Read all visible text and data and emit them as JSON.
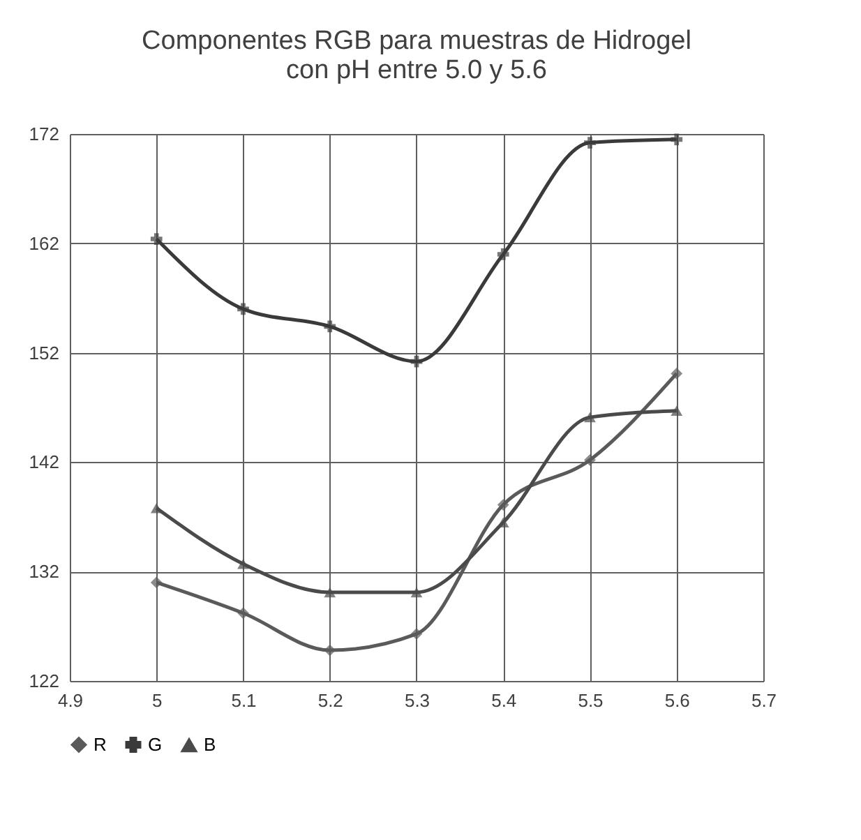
{
  "chart_data": {
    "type": "line",
    "title": [
      "Componentes  RGB para muestras  de Hidrogel",
      "con pH entre 5.0 y 5.6"
    ],
    "x": [
      5,
      5.1,
      5.2,
      5.3,
      5.4,
      5.5,
      5.6
    ],
    "series": [
      {
        "name": "R",
        "color": "#5a5a5a",
        "marker": "diamond",
        "values": [
          131,
          128.2,
          124.8,
          126.3,
          138.1,
          142.2,
          150.1
        ]
      },
      {
        "name": "G",
        "color": "#3a3a3a",
        "marker": "cross",
        "values": [
          162.4,
          156,
          154.4,
          151.2,
          161,
          171.2,
          171.5
        ]
      },
      {
        "name": "B",
        "color": "#4a4a4a",
        "marker": "triangle",
        "values": [
          137.8,
          132.7,
          130.1,
          130.1,
          136.5,
          146.1,
          146.7
        ]
      }
    ],
    "xlim": [
      4.9,
      5.7
    ],
    "xticks": [
      4.9,
      5,
      5.1,
      5.2,
      5.3,
      5.4,
      5.5,
      5.6,
      5.7
    ],
    "ylim": [
      122,
      172
    ],
    "yticks": [
      122,
      132,
      142,
      152,
      162,
      172
    ],
    "grid": true,
    "legend": "bottom",
    "line_style": "solid"
  }
}
